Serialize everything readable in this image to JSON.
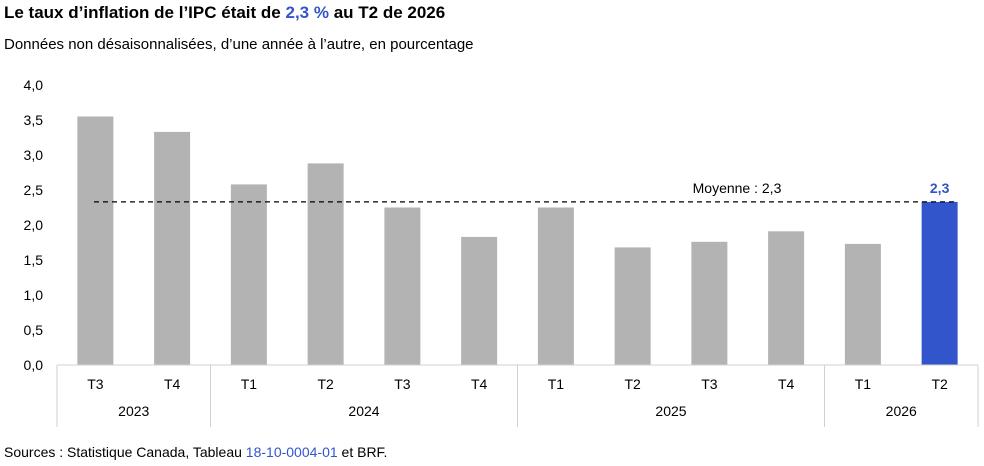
{
  "title": {
    "prefix": "Le taux d’inflation de l’IPC était de ",
    "highlight": "2,3 %",
    "suffix": " au T2 de 2026"
  },
  "subtitle": "Données non désaisonnalisées, d’une année à l’autre, en pourcentage",
  "source": {
    "prefix": "Sources : Statistique Canada, Tableau ",
    "link": "18-10-0004-01",
    "suffix": " et BRF."
  },
  "colors": {
    "bar": "#b3b3b3",
    "highlight": "#3355cc",
    "axis": "#d0d0d0"
  },
  "chart_data": {
    "type": "bar",
    "categories": [
      "T3",
      "T4",
      "T1",
      "T2",
      "T3",
      "T4",
      "T1",
      "T2",
      "T3",
      "T4",
      "T1",
      "T2"
    ],
    "groups": [
      {
        "label": "2023",
        "count": 2
      },
      {
        "label": "2024",
        "count": 4
      },
      {
        "label": "2025",
        "count": 4
      },
      {
        "label": "2026",
        "count": 2
      }
    ],
    "values": [
      3.55,
      3.33,
      2.58,
      2.88,
      2.25,
      1.83,
      2.25,
      1.68,
      1.76,
      1.91,
      1.73,
      2.33
    ],
    "highlight_index": 11,
    "highlight_label": "2,3",
    "reference_line": {
      "value": 2.33,
      "label": "Moyenne : 2,3"
    },
    "ylim": [
      0,
      4
    ],
    "yticks": [
      "0,0",
      "0,5",
      "1,0",
      "1,5",
      "2,0",
      "2,5",
      "3,0",
      "3,5",
      "4,0"
    ],
    "grid": false,
    "legend": "none"
  }
}
